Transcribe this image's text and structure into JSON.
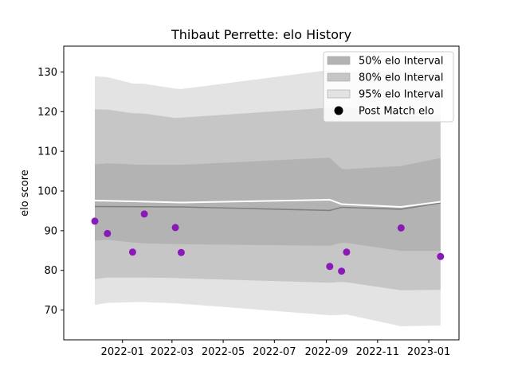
{
  "chart_data": {
    "type": "area",
    "title": "Thibaut Perrette: elo History",
    "xlabel": "",
    "ylabel": "elo score",
    "x_ticks": [
      "2022-01",
      "2022-03",
      "2022-05",
      "2022-07",
      "2022-09",
      "2022-11",
      "2023-01"
    ],
    "y_ticks": [
      70,
      80,
      90,
      100,
      110,
      120,
      130
    ],
    "xlim": [
      "2021-10-23",
      "2023-02-06"
    ],
    "ylim": [
      62.5,
      136.5
    ],
    "grid": false,
    "legend_position": "top-right",
    "legend": [
      {
        "label": "50% elo Interval",
        "kind": "band",
        "color": "#b3b3b3"
      },
      {
        "label": "80% elo Interval",
        "kind": "band",
        "color": "#c6c6c6"
      },
      {
        "label": "95% elo Interval",
        "kind": "band",
        "color": "#e3e3e3"
      },
      {
        "label": "Post Match elo",
        "kind": "marker",
        "color": "#000000"
      }
    ],
    "bands": {
      "x": [
        "2021-11-29",
        "2021-12-14",
        "2022-01-13",
        "2022-01-27",
        "2022-03-05",
        "2022-03-12",
        "2022-09-05",
        "2022-09-19",
        "2022-09-25",
        "2022-11-29",
        "2023-01-15"
      ],
      "band95": {
        "lower": [
          71.3,
          71.8,
          72.0,
          72.0,
          71.7,
          71.6,
          68.7,
          68.8,
          68.9,
          65.9,
          66.1
        ],
        "upper": [
          128.9,
          128.7,
          127.1,
          127.0,
          125.8,
          125.7,
          130.5,
          130.3,
          130.1,
          130.2,
          130.2
        ]
      },
      "band80": {
        "lower": [
          77.8,
          78.2,
          78.2,
          78.2,
          78.1,
          78.0,
          76.9,
          77.1,
          77.0,
          75.0,
          75.1
        ],
        "upper": [
          120.6,
          120.5,
          119.6,
          119.5,
          118.4,
          118.5,
          121.0,
          121.1,
          121.1,
          118.9,
          119.1
        ]
      },
      "band50": {
        "lower": [
          87.5,
          87.7,
          87.0,
          86.8,
          86.6,
          86.6,
          86.2,
          86.9,
          86.9,
          84.9,
          84.9
        ],
        "upper": [
          106.7,
          107.0,
          106.7,
          106.6,
          106.6,
          106.6,
          108.4,
          105.6,
          105.5,
          106.3,
          108.3
        ]
      }
    },
    "series": [
      {
        "kind": "line",
        "color": "#808080",
        "x": [
          "2021-11-29",
          "2022-03-12",
          "2022-09-05",
          "2022-09-19",
          "2022-11-29",
          "2023-01-15"
        ],
        "values": [
          96.1,
          96.0,
          95.1,
          95.9,
          95.4,
          97.0
        ]
      },
      {
        "kind": "line",
        "color": "#ffffff",
        "x": [
          "2021-11-29",
          "2022-01-13",
          "2022-03-12",
          "2022-09-05",
          "2022-09-19",
          "2022-11-29",
          "2023-01-15"
        ],
        "values": [
          97.6,
          97.4,
          97.1,
          97.8,
          96.7,
          96.0,
          97.3
        ]
      },
      {
        "name": "Post Match elo",
        "kind": "scatter",
        "color": "#8a1ab8",
        "x": [
          "2021-11-29",
          "2021-12-14",
          "2022-01-13",
          "2022-01-27",
          "2022-03-05",
          "2022-03-12",
          "2022-09-05",
          "2022-09-19",
          "2022-09-25",
          "2022-11-29",
          "2023-01-15"
        ],
        "values": [
          92.4,
          89.3,
          84.6,
          94.2,
          90.8,
          84.5,
          81.0,
          79.8,
          84.6,
          90.7,
          83.5
        ]
      }
    ]
  }
}
